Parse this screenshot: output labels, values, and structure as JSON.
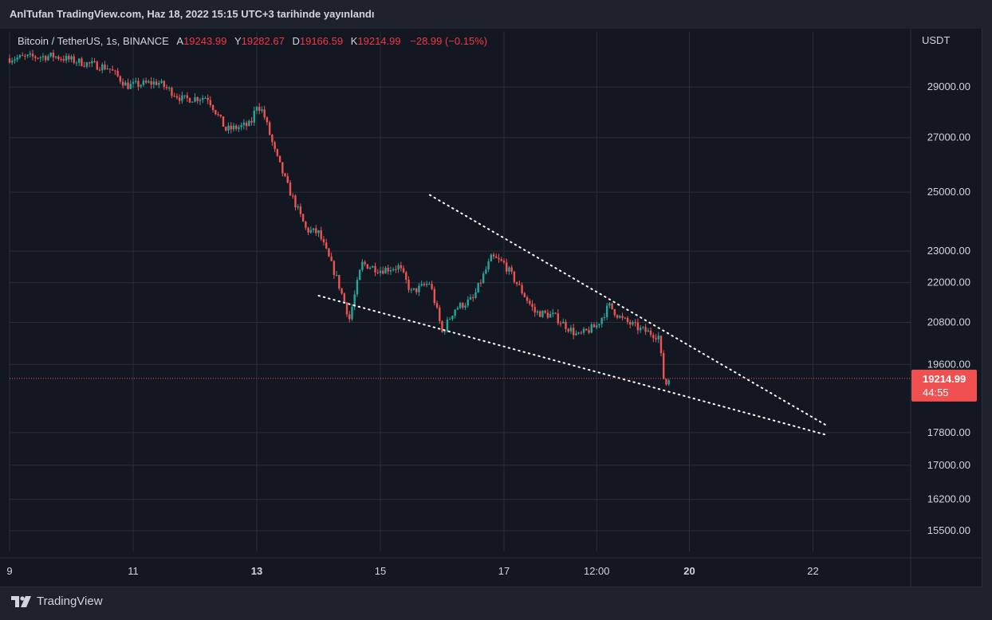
{
  "header": {
    "published_text": "AnlTufan TradingView.com, Haz 18, 2022 15:15 UTC+3 tarihinde yayınlandı"
  },
  "legend": {
    "symbol": "Bitcoin / TetherUS, 1s, BINANCE",
    "open_label": "A",
    "open": "19243.99",
    "high_label": "Y",
    "high": "19282.67",
    "low_label": "D",
    "low": "19166.59",
    "close_label": "K",
    "close": "19214.99",
    "change": "−28.99 (−0.15%)"
  },
  "price_axis": {
    "currency": "USDT",
    "current_price": "19214.99",
    "countdown": "44:55"
  },
  "footer": {
    "brand": "TradingView"
  },
  "colors": {
    "background": "#131722",
    "up": "#26a69a",
    "down": "#ef5350",
    "grid": "#2a2e39",
    "price_tag": "#f0504f"
  },
  "chart_data": {
    "type": "candlestick",
    "y_scale": "log",
    "x_ticks": [
      "9",
      "11",
      "13",
      "15",
      "17",
      "12:00",
      "20",
      "22"
    ],
    "y_ticks": [
      29000,
      27000,
      25000,
      23000,
      22000,
      20800,
      19600,
      17800,
      17000,
      16200,
      15500
    ],
    "ylim": [
      15200,
      31500
    ],
    "current_price": 19214.99,
    "price_path": [
      {
        "day": 9.0,
        "price": 30200
      },
      {
        "day": 9.7,
        "price": 30300
      },
      {
        "day": 10.3,
        "price": 29950
      },
      {
        "day": 10.6,
        "price": 29800
      },
      {
        "day": 10.9,
        "price": 29050
      },
      {
        "day": 11.4,
        "price": 29200
      },
      {
        "day": 11.8,
        "price": 28500
      },
      {
        "day": 12.2,
        "price": 28600
      },
      {
        "day": 12.5,
        "price": 27300
      },
      {
        "day": 12.9,
        "price": 27500
      },
      {
        "day": 13.0,
        "price": 28300
      },
      {
        "day": 13.1,
        "price": 28000
      },
      {
        "day": 13.3,
        "price": 26400
      },
      {
        "day": 13.5,
        "price": 25200
      },
      {
        "day": 13.8,
        "price": 23700
      },
      {
        "day": 14.0,
        "price": 23600
      },
      {
        "day": 14.3,
        "price": 22100
      },
      {
        "day": 14.5,
        "price": 20900
      },
      {
        "day": 14.7,
        "price": 22600
      },
      {
        "day": 15.0,
        "price": 22400
      },
      {
        "day": 15.3,
        "price": 22500
      },
      {
        "day": 15.5,
        "price": 21700
      },
      {
        "day": 15.8,
        "price": 22000
      },
      {
        "day": 16.0,
        "price": 20500
      },
      {
        "day": 16.2,
        "price": 21200
      },
      {
        "day": 16.5,
        "price": 21500
      },
      {
        "day": 16.8,
        "price": 22800
      },
      {
        "day": 17.0,
        "price": 22600
      },
      {
        "day": 17.2,
        "price": 22000
      },
      {
        "day": 17.5,
        "price": 21100
      },
      {
        "day": 17.8,
        "price": 21000
      },
      {
        "day": 18.2,
        "price": 20400
      },
      {
        "day": 18.5,
        "price": 20700
      },
      {
        "day": 18.7,
        "price": 21300
      },
      {
        "day": 18.9,
        "price": 20900
      },
      {
        "day": 19.2,
        "price": 20600
      },
      {
        "day": 19.5,
        "price": 20400
      },
      {
        "day": 19.6,
        "price": 19000
      },
      {
        "day": 19.7,
        "price": 19300
      }
    ],
    "trendlines": [
      {
        "name": "upper",
        "start": {
          "day": 15.8,
          "price": 24900
        },
        "end": {
          "day": 22.2,
          "price": 18000
        }
      },
      {
        "name": "lower",
        "start": {
          "day": 14.0,
          "price": 21600
        },
        "end": {
          "day": 22.2,
          "price": 17750
        }
      }
    ]
  }
}
